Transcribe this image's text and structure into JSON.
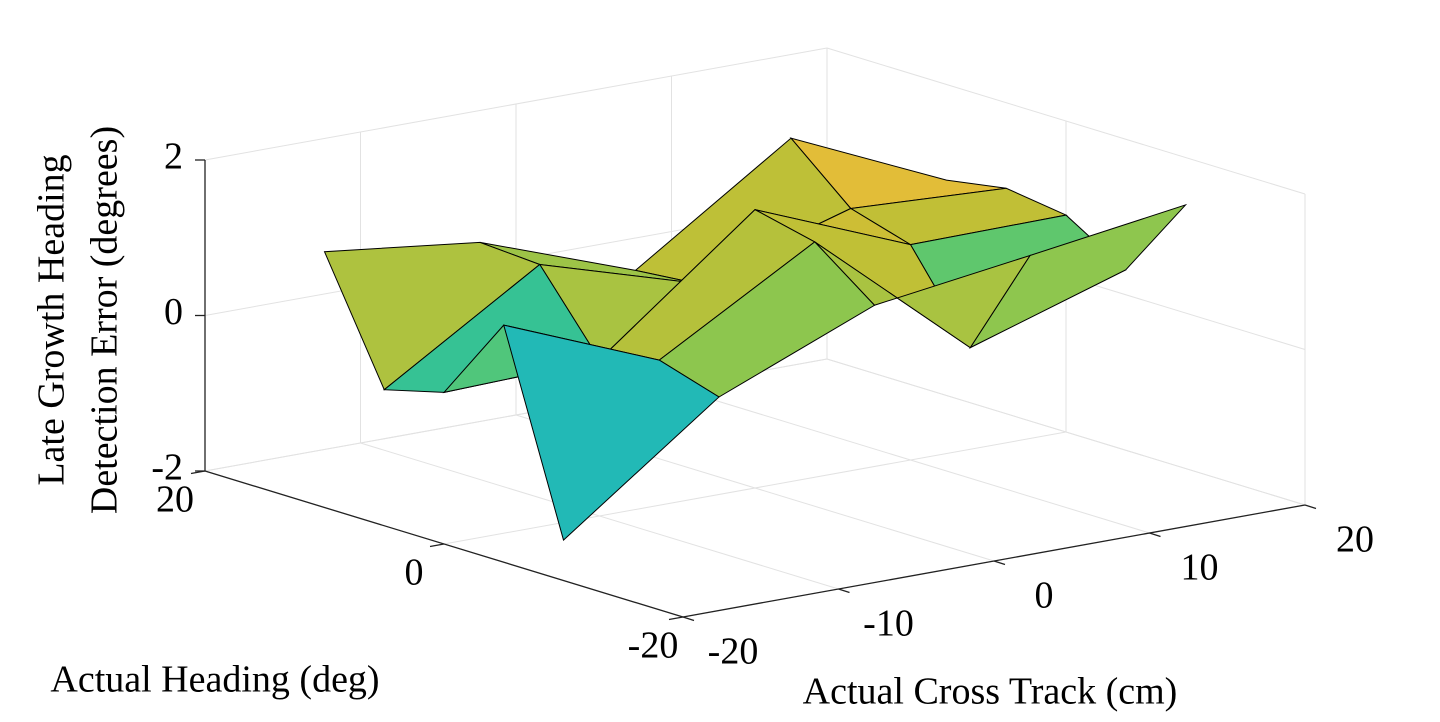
{
  "chart_data": {
    "type": "surface",
    "xlabel": "Actual Cross Track (cm)",
    "ylabel": "Actual Heading (deg)",
    "zlabel": [
      "Late Growth Heading",
      "Detection Error (degrees)"
    ],
    "x": [
      -20,
      -10,
      0,
      10,
      20
    ],
    "y": [
      -10,
      -5,
      0,
      5,
      10
    ],
    "z": [
      [
        -1.48,
        0.0,
        0.82,
        1.1,
        1.39
      ],
      [
        1.05,
        0.24,
        1.4,
        -0.32,
        0.32
      ],
      [
        -0.05,
        0.01,
        1.58,
        0.77,
        0.79
      ],
      [
        -0.25,
        1.0,
        0.4,
        1.0,
        0.9
      ],
      [
        1.29,
        1.05,
        0.33,
        1.67,
        0.77
      ]
    ],
    "xlim": [
      -20,
      20
    ],
    "ylim": [
      -20,
      20
    ],
    "zlim": [
      -2,
      2
    ],
    "xticks": [
      -20,
      -10,
      0,
      10,
      20
    ],
    "yticks": [
      -20,
      0,
      20
    ],
    "zticks": [
      -2,
      0,
      2
    ],
    "grid": true,
    "colormap": [
      "#3e26a8",
      "#4743f8",
      "#2c8afa",
      "#1caed7",
      "#26c0a3",
      "#72ca5b",
      "#c5bf34",
      "#fdbb3c",
      "#f9fb15"
    ]
  }
}
